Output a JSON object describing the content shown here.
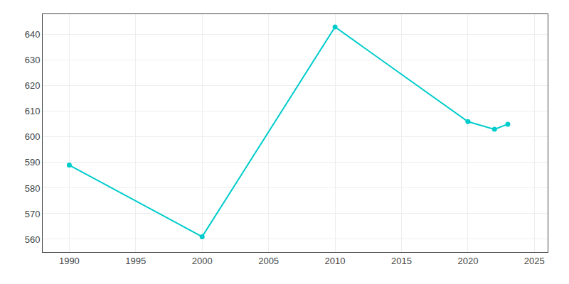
{
  "chart_data": {
    "type": "line",
    "x": [
      1990,
      2000,
      2010,
      2020,
      2022,
      2023
    ],
    "values": [
      589,
      561,
      643,
      606,
      603,
      605
    ],
    "color": "#00CCCC",
    "marker": "circle",
    "xlim": [
      1988,
      2026
    ],
    "ylim": [
      555,
      648
    ],
    "xticks": [
      1990,
      1995,
      2000,
      2005,
      2010,
      2015,
      2020,
      2025
    ],
    "yticks": [
      560,
      570,
      580,
      590,
      600,
      610,
      620,
      630,
      640
    ],
    "grid": true
  }
}
